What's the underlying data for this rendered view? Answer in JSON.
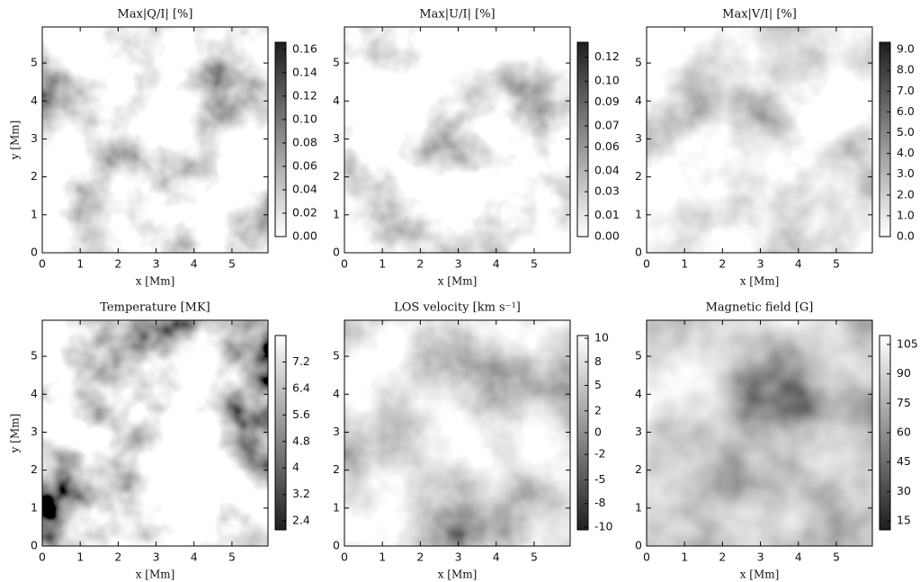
{
  "chart_data": [
    {
      "type": "heatmap",
      "title": "Max|Q/I| [%]",
      "xlabel": "x [Mm]",
      "ylabel": "y [Mm]",
      "xlim": [
        0,
        5.95
      ],
      "ylim": [
        0,
        5.95
      ],
      "xticks": [
        0,
        1,
        2,
        3,
        4,
        5
      ],
      "yticks": [
        0,
        1,
        2,
        3,
        4,
        5
      ],
      "colormap": [
        "#ffffff",
        "#1e1e1e"
      ],
      "colorbar_lim": [
        0,
        0.166
      ],
      "colorbar_ticks": [
        {
          "value": 0,
          "label": "0.00"
        },
        {
          "value": 0.02,
          "label": "0.02"
        },
        {
          "value": 0.04,
          "label": "0.04"
        },
        {
          "value": 0.06,
          "label": "0.06"
        },
        {
          "value": 0.08,
          "label": "0.08"
        },
        {
          "value": 0.1,
          "label": "0.10"
        },
        {
          "value": 0.12,
          "label": "0.12"
        },
        {
          "value": 0.14,
          "label": "0.14"
        },
        {
          "value": 0.16,
          "label": "0.16"
        }
      ]
    },
    {
      "type": "heatmap",
      "title": "Max|U/I| [%]",
      "xlabel": "x [Mm]",
      "xlim": [
        0,
        5.95
      ],
      "ylim": [
        0,
        5.95
      ],
      "xticks": [
        0,
        1,
        2,
        3,
        4,
        5
      ],
      "yticks": [
        0,
        1,
        2,
        3,
        4,
        5
      ],
      "colormap": [
        "#ffffff",
        "#1e1e1e"
      ],
      "colorbar_lim": [
        0,
        0.13
      ],
      "colorbar_ticks": [
        {
          "value": 0,
          "label": "0.00"
        },
        {
          "value": 0.014,
          "label": "0.01"
        },
        {
          "value": 0.03,
          "label": "0.03"
        },
        {
          "value": 0.044,
          "label": "0.04"
        },
        {
          "value": 0.06,
          "label": "0.06"
        },
        {
          "value": 0.074,
          "label": "0.07"
        },
        {
          "value": 0.09,
          "label": "0.09"
        },
        {
          "value": 0.104,
          "label": "0.10"
        },
        {
          "value": 0.12,
          "label": "0.12"
        }
      ]
    },
    {
      "type": "heatmap",
      "title": "Max|V/I| [%]",
      "xlabel": "x [Mm]",
      "xlim": [
        0,
        5.95
      ],
      "ylim": [
        0,
        5.95
      ],
      "xticks": [
        0,
        1,
        2,
        3,
        4,
        5
      ],
      "yticks": [
        0,
        1,
        2,
        3,
        4,
        5
      ],
      "colormap": [
        "#ffffff",
        "#1e1e1e"
      ],
      "colorbar_lim": [
        0,
        9.35
      ],
      "colorbar_ticks": [
        {
          "value": 0,
          "label": "0.0"
        },
        {
          "value": 1,
          "label": "1.0"
        },
        {
          "value": 2,
          "label": "2.0"
        },
        {
          "value": 3,
          "label": "3.0"
        },
        {
          "value": 4,
          "label": "4.0"
        },
        {
          "value": 5,
          "label": "5.0"
        },
        {
          "value": 6,
          "label": "6.0"
        },
        {
          "value": 7,
          "label": "7.0"
        },
        {
          "value": 8,
          "label": "8.0"
        },
        {
          "value": 9,
          "label": "9.0"
        }
      ]
    },
    {
      "type": "heatmap",
      "title": "Temperature [MK]",
      "xlabel": "x [Mm]",
      "ylabel": "y [Mm]",
      "xlim": [
        0,
        5.95
      ],
      "ylim": [
        0,
        5.95
      ],
      "xticks": [
        0,
        1,
        2,
        3,
        4,
        5
      ],
      "yticks": [
        0,
        1,
        2,
        3,
        4,
        5
      ],
      "colormap": [
        "#1e1e1e",
        "#ffffff"
      ],
      "colorbar_lim": [
        2.13,
        8.0
      ],
      "colorbar_ticks": [
        2.4,
        3.2,
        4.0,
        4.8,
        5.6,
        6.4,
        7.2
      ]
    },
    {
      "type": "heatmap",
      "title": "LOS velocity [km s⁻¹]",
      "xlabel": "x [Mm]",
      "xlim": [
        0,
        5.95
      ],
      "ylim": [
        0,
        5.95
      ],
      "xticks": [
        0,
        1,
        2,
        3,
        4,
        5
      ],
      "yticks": [
        0,
        1,
        2,
        3,
        4,
        5
      ],
      "colormap": [
        "#1e1e1e",
        "#ffffff"
      ],
      "colorbar_lim": [
        -10.7,
        10.7
      ],
      "colorbar_ticks": [
        {
          "value": -10.4,
          "label": "-10"
        },
        {
          "value": -7.8,
          "label": "-8"
        },
        {
          "value": -5.2,
          "label": "-5"
        },
        {
          "value": -2.4,
          "label": "-2"
        },
        0,
        {
          "value": 2.4,
          "label": "2"
        },
        {
          "value": 5.2,
          "label": "5"
        },
        {
          "value": 7.8,
          "label": "8"
        },
        {
          "value": 10.4,
          "label": "10"
        }
      ]
    },
    {
      "type": "heatmap",
      "title": "Magnetic field [G]",
      "xlabel": "x [Mm]",
      "xlim": [
        0,
        5.95
      ],
      "ylim": [
        0,
        5.95
      ],
      "xticks": [
        0,
        1,
        2,
        3,
        4,
        5
      ],
      "yticks": [
        0,
        1,
        2,
        3,
        4,
        5
      ],
      "colormap": [
        "#1e1e1e",
        "#ffffff"
      ],
      "colorbar_lim": [
        10.5,
        109.5
      ],
      "colorbar_ticks": [
        15,
        30,
        45,
        60,
        75,
        90,
        105
      ]
    }
  ]
}
